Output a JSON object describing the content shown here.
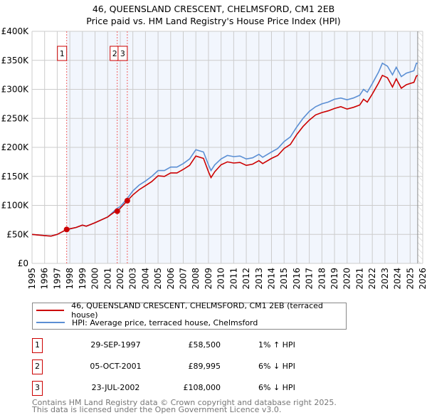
{
  "chart_data": {
    "type": "line",
    "title": "46, QUEENSLAND CRESCENT, CHELMSFORD, CM1 2EB",
    "subtitle": "Price paid vs. HM Land Registry's House Price Index (HPI)",
    "xlim": [
      1995,
      2026
    ],
    "ylim": [
      0,
      400000
    ],
    "x_ticks": [
      "1995",
      "1996",
      "1997",
      "1998",
      "1999",
      "2000",
      "2001",
      "2002",
      "2003",
      "2004",
      "2005",
      "2006",
      "2007",
      "2008",
      "2009",
      "2010",
      "2011",
      "2012",
      "2013",
      "2014",
      "2015",
      "2016",
      "2017",
      "2018",
      "2019",
      "2020",
      "2021",
      "2022",
      "2023",
      "2024",
      "2025",
      "2026"
    ],
    "y_ticks": [
      {
        "v": 0,
        "label": "£0"
      },
      {
        "v": 50000,
        "label": "£50K"
      },
      {
        "v": 100000,
        "label": "£100K"
      },
      {
        "v": 150000,
        "label": "£150K"
      },
      {
        "v": 200000,
        "label": "£200K"
      },
      {
        "v": 250000,
        "label": "£250K"
      },
      {
        "v": 300000,
        "label": "£300K"
      },
      {
        "v": 350000,
        "label": "£350K"
      },
      {
        "v": 400000,
        "label": "£400K"
      }
    ],
    "grid": true,
    "shaded_from": 1997.75,
    "hatched_from": 2025.6,
    "series": [
      {
        "name": "46, QUEENSLAND CRESCENT, CHELMSFORD, CM1 2EB (terraced house)",
        "color": "#cc0000",
        "x": [
          1995,
          1996,
          1996.5,
          1997,
          1997.75,
          1998.5,
          1999,
          1999.3,
          2000,
          2001,
          2001.5,
          2001.76,
          2002,
          2002.56,
          2003,
          2003.5,
          2004,
          2004.5,
          2005,
          2005.5,
          2006,
          2006.5,
          2007,
          2007.5,
          2008,
          2008.6,
          2009,
          2009.2,
          2009.5,
          2010,
          2010.5,
          2011,
          2011.5,
          2012,
          2012.5,
          2013,
          2013.3,
          2014,
          2014.5,
          2015,
          2015.5,
          2016,
          2016.5,
          2017,
          2017.5,
          2018,
          2018.5,
          2019,
          2019.5,
          2020,
          2020.5,
          2021,
          2021.3,
          2021.6,
          2022,
          2022.5,
          2022.8,
          2023.2,
          2023.6,
          2023.9,
          2024.3,
          2024.7,
          2025,
          2025.3,
          2025.5,
          2025.6
        ],
        "y": [
          50,
          48,
          47,
          50,
          58.5,
          62,
          66,
          64,
          70,
          80,
          88,
          90,
          95,
          108,
          118,
          127,
          134,
          141,
          151,
          150,
          156,
          156,
          162,
          169,
          185,
          181,
          158,
          148,
          158,
          170,
          175,
          173,
          174,
          169,
          171,
          177,
          172,
          181,
          186,
          198,
          205,
          222,
          236,
          247,
          256,
          260,
          263,
          267,
          270,
          266,
          269,
          273,
          283,
          278,
          292,
          311,
          324,
          320,
          304,
          318,
          302,
          308,
          310,
          312,
          323,
          324
        ]
      },
      {
        "name": "HPI: Average price, terraced house, Chelmsford",
        "color": "#5b8fd4",
        "x": [
          1995,
          1996,
          1996.5,
          1997,
          1997.75,
          1998.5,
          1999,
          1999.3,
          2000,
          2001,
          2001.75,
          2002,
          2002.6,
          2003,
          2003.5,
          2004,
          2004.5,
          2005,
          2005.5,
          2006,
          2006.5,
          2007,
          2007.5,
          2008,
          2008.6,
          2009,
          2009.2,
          2009.5,
          2010,
          2010.5,
          2011,
          2011.5,
          2012,
          2012.5,
          2013,
          2013.3,
          2014,
          2014.5,
          2015,
          2015.5,
          2016,
          2016.5,
          2017,
          2017.5,
          2018,
          2018.5,
          2019,
          2019.5,
          2020,
          2020.5,
          2021,
          2021.3,
          2021.6,
          2022,
          2022.5,
          2022.8,
          2023.2,
          2023.6,
          2023.9,
          2024.3,
          2024.7,
          2025,
          2025.3,
          2025.5,
          2025.6
        ],
        "y": [
          50,
          48,
          47,
          50,
          58,
          62,
          66,
          64,
          70,
          80,
          95,
          98,
          113,
          125,
          135,
          142,
          150,
          160,
          160,
          166,
          166,
          172,
          180,
          196,
          192,
          170,
          160,
          170,
          180,
          186,
          184,
          185,
          180,
          182,
          188,
          183,
          192,
          198,
          210,
          218,
          235,
          250,
          262,
          270,
          275,
          278,
          283,
          285,
          282,
          285,
          290,
          300,
          295,
          310,
          330,
          345,
          340,
          325,
          338,
          322,
          328,
          330,
          332,
          345,
          345
        ]
      }
    ],
    "sales": [
      {
        "label": "1",
        "x": 1997.75,
        "price": 58500,
        "date": "29-SEP-1997",
        "price_text": "£58,500",
        "hpi_text": "1% ↑ HPI"
      },
      {
        "label": "2",
        "x": 2001.76,
        "price": 89995,
        "date": "05-OCT-2001",
        "price_text": "£89,995",
        "hpi_text": "6% ↓ HPI"
      },
      {
        "label": "3",
        "x": 2002.56,
        "price": 108000,
        "date": "23-JUL-2002",
        "price_text": "£108,000",
        "hpi_text": "6% ↓ HPI"
      }
    ]
  },
  "header": {
    "title": "46, QUEENSLAND CRESCENT, CHELMSFORD, CM1 2EB",
    "subtitle": "Price paid vs. HM Land Registry's House Price Index (HPI)"
  },
  "legend": {
    "property": "46, QUEENSLAND CRESCENT, CHELMSFORD, CM1 2EB (terraced house)",
    "hpi": "HPI: Average price, terraced house, Chelmsford",
    "property_color": "#cc0000",
    "hpi_color": "#5b8fd4"
  },
  "footer": {
    "line1": "Contains HM Land Registry data © Crown copyright and database right 2025.",
    "line2": "This data is licensed under the Open Government Licence v3.0."
  }
}
